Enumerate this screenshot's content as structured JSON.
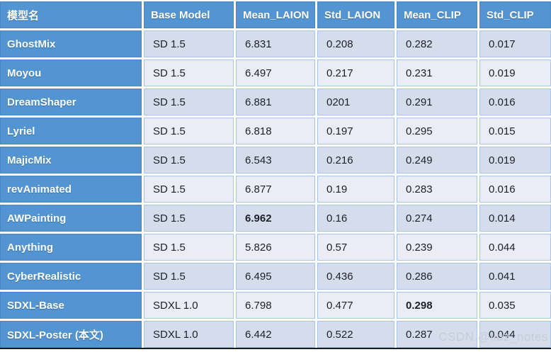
{
  "colors": {
    "header_blue": "#5295d2",
    "band_dark": "#d5ddec",
    "band_light": "#eaedf5",
    "text_dark": "#20222a",
    "bottom_border": "#1b1b1b",
    "watermark_color": "#c6cbd4"
  },
  "watermark": {
    "text": "CSDN @liuz_notes"
  },
  "chart_data": {
    "type": "table",
    "columns": [
      "模型名",
      "Base Model",
      "Mean_LAION",
      "Std_LAION",
      "Mean_CLIP",
      "Std_CLIP"
    ],
    "rows": [
      {
        "cells": [
          "GhostMix",
          "SD 1.5",
          "6.831",
          "0.208",
          "0.282",
          "0.017"
        ],
        "bold": []
      },
      {
        "cells": [
          "Moyou",
          "SD 1.5",
          "6.497",
          "0.217",
          "0.231",
          "0.019"
        ],
        "bold": []
      },
      {
        "cells": [
          "DreamShaper",
          "SD 1.5",
          "6.881",
          "0201",
          "0.291",
          "0.016"
        ],
        "bold": []
      },
      {
        "cells": [
          "Lyriel",
          "SD 1.5",
          "6.818",
          "0.197",
          "0.295",
          "0.015"
        ],
        "bold": []
      },
      {
        "cells": [
          "MajicMix",
          "SD 1.5",
          "6.543",
          "0.216",
          "0.249",
          "0.019"
        ],
        "bold": []
      },
      {
        "cells": [
          "revAnimated",
          "SD 1.5",
          "6.877",
          "0.19",
          "0.283",
          "0.016"
        ],
        "bold": []
      },
      {
        "cells": [
          "AWPainting",
          "SD 1.5",
          "6.962",
          "0.16",
          "0.274",
          "0.014"
        ],
        "bold": [
          2
        ]
      },
      {
        "cells": [
          "Anything",
          "SD 1.5",
          "5.826",
          "0.57",
          "0.239",
          "0.044"
        ],
        "bold": []
      },
      {
        "cells": [
          "CyberRealistic",
          "SD 1.5",
          "6.495",
          "0.436",
          "0.286",
          "0.041"
        ],
        "bold": []
      },
      {
        "cells": [
          "SDXL-Base",
          "SDXL 1.0",
          "6.798",
          "0.477",
          "0.298",
          "0.035"
        ],
        "bold": [
          4
        ]
      },
      {
        "cells": [
          "SDXL-Poster (本文)",
          "SDXL 1.0",
          "6.442",
          "0.522",
          "0.287",
          "0.044"
        ],
        "bold": []
      }
    ]
  }
}
